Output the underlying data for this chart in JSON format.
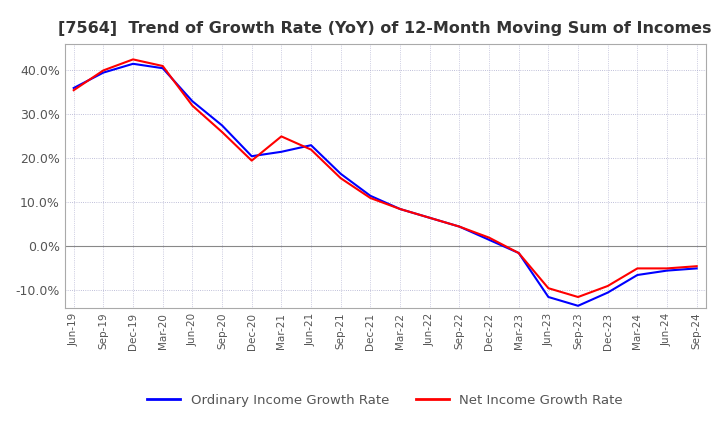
{
  "title": "[7564]  Trend of Growth Rate (YoY) of 12-Month Moving Sum of Incomes",
  "ylim": [
    -14,
    46
  ],
  "yticks": [
    -10,
    0,
    10,
    20,
    30,
    40
  ],
  "ytick_labels": [
    "-10.0%",
    "0.0%",
    "10.0%",
    "20.0%",
    "30.0%",
    "40.0%"
  ],
  "legend_ordinary": "Ordinary Income Growth Rate",
  "legend_net": "Net Income Growth Rate",
  "ordinary_color": "#0000FF",
  "net_color": "#FF0000",
  "background_color": "#FFFFFF",
  "grid_color": "#AAAACC",
  "dates": [
    "Jun-19",
    "Sep-19",
    "Dec-19",
    "Mar-20",
    "Jun-20",
    "Sep-20",
    "Dec-20",
    "Mar-21",
    "Jun-21",
    "Sep-21",
    "Dec-21",
    "Mar-22",
    "Jun-22",
    "Sep-22",
    "Dec-22",
    "Mar-23",
    "Jun-23",
    "Sep-23",
    "Dec-23",
    "Mar-24",
    "Jun-24",
    "Sep-24"
  ],
  "ordinary_values": [
    36.0,
    39.5,
    41.5,
    40.5,
    33.0,
    27.5,
    20.5,
    21.5,
    23.0,
    16.5,
    11.5,
    8.5,
    6.5,
    4.5,
    1.5,
    -1.5,
    -11.5,
    -13.5,
    -10.5,
    -6.5,
    -5.5,
    -5.0
  ],
  "net_values": [
    35.5,
    40.0,
    42.5,
    41.0,
    32.0,
    26.0,
    19.5,
    25.0,
    22.0,
    15.5,
    11.0,
    8.5,
    6.5,
    4.5,
    2.0,
    -1.5,
    -9.5,
    -11.5,
    -9.0,
    -5.0,
    -5.0,
    -4.5
  ]
}
